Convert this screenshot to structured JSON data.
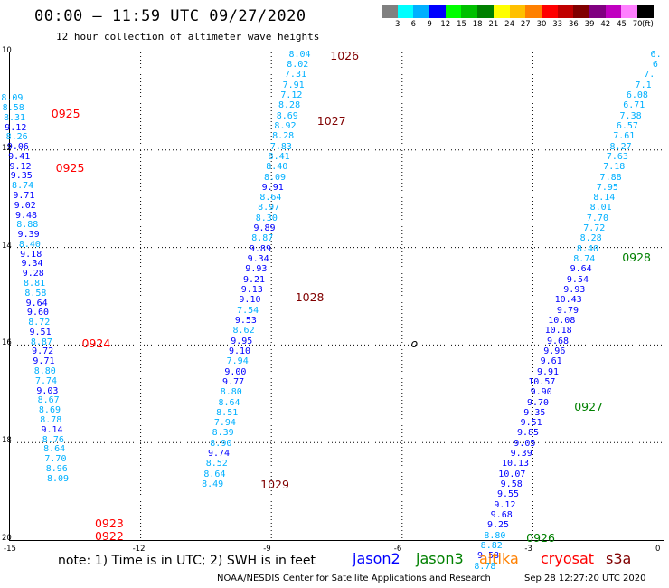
{
  "title": "00:00 – 11:59 UTC 09/27/2020",
  "subtitle": "12 hour collection of altimeter wave heights",
  "colorbar": {
    "colors": [
      "#808080",
      "#00ffff",
      "#00b0ff",
      "#0000ff",
      "#00ff00",
      "#00c000",
      "#008000",
      "#ffff00",
      "#ffc000",
      "#ff8000",
      "#ff0000",
      "#c00000",
      "#800000",
      "#800080",
      "#c000c0",
      "#ff80ff",
      "#000000"
    ],
    "labels": [
      "3",
      "6",
      "9",
      "12",
      "15",
      "18",
      "21",
      "24",
      "27",
      "30",
      "33",
      "36",
      "39",
      "42",
      "45",
      "70"
    ],
    "unit": "(ft)"
  },
  "axes": {
    "xlim": [
      -15,
      0
    ],
    "ylim": [
      10,
      20
    ],
    "xticks": [
      "-15",
      "-12",
      "-9",
      "-6",
      "-3",
      "0"
    ],
    "yticks": [
      "10",
      "12",
      "14",
      "16",
      "18",
      "20"
    ]
  },
  "tracks": [
    {
      "lon": -14.7,
      "lat_start": 10.95,
      "step": 0.2,
      "values": [
        {
          "v": "8.09",
          "c": "#00b0ff"
        },
        {
          "v": "8.58",
          "c": "#00b0ff"
        },
        {
          "v": "8.31",
          "c": "#00b0ff"
        },
        {
          "v": "9.12",
          "c": "#0000ff"
        },
        {
          "v": "8.26",
          "c": "#00b0ff"
        },
        {
          "v": "9.06",
          "c": "#0000ff"
        },
        {
          "v": "9.41",
          "c": "#0000ff"
        },
        {
          "v": "9.12",
          "c": "#0000ff"
        },
        {
          "v": "9.35",
          "c": "#0000ff"
        },
        {
          "v": "8.74",
          "c": "#00b0ff"
        },
        {
          "v": "9.71",
          "c": "#0000ff"
        },
        {
          "v": "9.02",
          "c": "#0000ff"
        },
        {
          "v": "9.48",
          "c": "#0000ff"
        },
        {
          "v": "8.88",
          "c": "#00b0ff"
        },
        {
          "v": "9.39",
          "c": "#0000ff"
        },
        {
          "v": "8.40",
          "c": "#00b0ff"
        },
        {
          "v": "9.18",
          "c": "#0000ff"
        },
        {
          "v": "9.34",
          "c": "#0000ff"
        },
        {
          "v": "9.28",
          "c": "#0000ff"
        },
        {
          "v": "8.81",
          "c": "#00b0ff"
        },
        {
          "v": "8.58",
          "c": "#00b0ff"
        },
        {
          "v": "9.64",
          "c": "#0000ff"
        },
        {
          "v": "9.60",
          "c": "#0000ff"
        },
        {
          "v": "8.72",
          "c": "#00b0ff"
        },
        {
          "v": "9.51",
          "c": "#0000ff"
        },
        {
          "v": "8.87",
          "c": "#00b0ff"
        },
        {
          "v": "9.72",
          "c": "#0000ff"
        },
        {
          "v": "9.71",
          "c": "#0000ff"
        },
        {
          "v": "8.80",
          "c": "#00b0ff"
        },
        {
          "v": "7.74",
          "c": "#00b0ff"
        },
        {
          "v": "9.03",
          "c": "#0000ff"
        },
        {
          "v": "8.67",
          "c": "#00b0ff"
        },
        {
          "v": "8.69",
          "c": "#00b0ff"
        },
        {
          "v": "8.78",
          "c": "#00b0ff"
        },
        {
          "v": "9.14",
          "c": "#0000ff"
        },
        {
          "v": "8.76",
          "c": "#00b0ff"
        },
        {
          "v": "8.64",
          "c": "#00b0ff"
        },
        {
          "v": "7.70",
          "c": "#00b0ff"
        },
        {
          "v": "8.96",
          "c": "#00b0ff"
        },
        {
          "v": "8.09",
          "c": "#00b0ff"
        }
      ],
      "lon_end": -13.65
    },
    {
      "lon": -8.1,
      "lat_start": 10.05,
      "step": 0.21,
      "values": [
        {
          "v": "8.04",
          "c": "#00b0ff"
        },
        {
          "v": "8.02",
          "c": "#00b0ff"
        },
        {
          "v": "7.31",
          "c": "#00b0ff"
        },
        {
          "v": "7.91",
          "c": "#00b0ff"
        },
        {
          "v": "7.12",
          "c": "#00b0ff"
        },
        {
          "v": "8.28",
          "c": "#00b0ff"
        },
        {
          "v": "8.69",
          "c": "#00b0ff"
        },
        {
          "v": "8.92",
          "c": "#00b0ff"
        },
        {
          "v": "8.28",
          "c": "#00b0ff"
        },
        {
          "v": "7.83",
          "c": "#00b0ff"
        },
        {
          "v": "8.41",
          "c": "#00b0ff"
        },
        {
          "v": "8.40",
          "c": "#00b0ff"
        },
        {
          "v": "8.09",
          "c": "#00b0ff"
        },
        {
          "v": "9.91",
          "c": "#0000ff"
        },
        {
          "v": "8.64",
          "c": "#00b0ff"
        },
        {
          "v": "8.97",
          "c": "#00b0ff"
        },
        {
          "v": "8.30",
          "c": "#00b0ff"
        },
        {
          "v": "9.89",
          "c": "#0000ff"
        },
        {
          "v": "8.87",
          "c": "#00b0ff"
        },
        {
          "v": "9.89",
          "c": "#0000ff"
        },
        {
          "v": "9.34",
          "c": "#0000ff"
        },
        {
          "v": "9.93",
          "c": "#0000ff"
        },
        {
          "v": "9.21",
          "c": "#0000ff"
        },
        {
          "v": "9.13",
          "c": "#0000ff"
        },
        {
          "v": "9.10",
          "c": "#0000ff"
        },
        {
          "v": "7.54",
          "c": "#00b0ff"
        },
        {
          "v": "9.53",
          "c": "#0000ff"
        },
        {
          "v": "8.62",
          "c": "#00b0ff"
        },
        {
          "v": "9.95",
          "c": "#0000ff"
        },
        {
          "v": "9.10",
          "c": "#0000ff"
        },
        {
          "v": "7.94",
          "c": "#00b0ff"
        },
        {
          "v": "9.00",
          "c": "#0000ff"
        },
        {
          "v": "9.77",
          "c": "#0000ff"
        },
        {
          "v": "8.80",
          "c": "#00b0ff"
        },
        {
          "v": "8.64",
          "c": "#00b0ff"
        },
        {
          "v": "8.51",
          "c": "#00b0ff"
        },
        {
          "v": "7.94",
          "c": "#00b0ff"
        },
        {
          "v": "8.39",
          "c": "#00b0ff"
        },
        {
          "v": "8.90",
          "c": "#00b0ff"
        },
        {
          "v": "9.74",
          "c": "#0000ff"
        },
        {
          "v": "8.52",
          "c": "#00b0ff"
        },
        {
          "v": "8.64",
          "c": "#00b0ff"
        },
        {
          "v": "8.49",
          "c": "#00b0ff"
        }
      ],
      "lon_end": -10.1
    },
    {
      "lon": -0.05,
      "lat_start": 10.05,
      "step": 0.21,
      "values": [
        {
          "v": "6.",
          "c": "#00b0ff"
        },
        {
          "v": "6",
          "c": "#00b0ff"
        },
        {
          "v": "7.",
          "c": "#00b0ff"
        },
        {
          "v": "7.1",
          "c": "#00b0ff"
        },
        {
          "v": "6.08",
          "c": "#00b0ff"
        },
        {
          "v": "6.71",
          "c": "#00b0ff"
        },
        {
          "v": "7.38",
          "c": "#00b0ff"
        },
        {
          "v": "6.57",
          "c": "#00b0ff"
        },
        {
          "v": "7.61",
          "c": "#00b0ff"
        },
        {
          "v": "8.27",
          "c": "#00b0ff"
        },
        {
          "v": "7.63",
          "c": "#00b0ff"
        },
        {
          "v": "7.18",
          "c": "#00b0ff"
        },
        {
          "v": "7.88",
          "c": "#00b0ff"
        },
        {
          "v": "7.95",
          "c": "#00b0ff"
        },
        {
          "v": "8.14",
          "c": "#00b0ff"
        },
        {
          "v": "8.01",
          "c": "#00b0ff"
        },
        {
          "v": "7.70",
          "c": "#00b0ff"
        },
        {
          "v": "7.72",
          "c": "#00b0ff"
        },
        {
          "v": "8.28",
          "c": "#00b0ff"
        },
        {
          "v": "8.40",
          "c": "#00b0ff"
        },
        {
          "v": "8.74",
          "c": "#00b0ff"
        },
        {
          "v": "9.64",
          "c": "#0000ff"
        },
        {
          "v": "9.54",
          "c": "#0000ff"
        },
        {
          "v": "9.93",
          "c": "#0000ff"
        },
        {
          "v": "10.43",
          "c": "#0000ff"
        },
        {
          "v": "9.79",
          "c": "#0000ff"
        },
        {
          "v": "10.08",
          "c": "#0000ff"
        },
        {
          "v": "10.18",
          "c": "#0000ff"
        },
        {
          "v": "9.68",
          "c": "#0000ff"
        },
        {
          "v": "9.96",
          "c": "#0000ff"
        },
        {
          "v": "9.61",
          "c": "#0000ff"
        },
        {
          "v": "9.91",
          "c": "#0000ff"
        },
        {
          "v": "10.57",
          "c": "#0000ff"
        },
        {
          "v": "9.90",
          "c": "#0000ff"
        },
        {
          "v": "9.70",
          "c": "#0000ff"
        },
        {
          "v": "9.35",
          "c": "#0000ff"
        },
        {
          "v": "9.51",
          "c": "#0000ff"
        },
        {
          "v": "9.85",
          "c": "#0000ff"
        },
        {
          "v": "9.05",
          "c": "#0000ff"
        },
        {
          "v": "9.39",
          "c": "#0000ff"
        },
        {
          "v": "10.13",
          "c": "#0000ff"
        },
        {
          "v": "10.07",
          "c": "#0000ff"
        },
        {
          "v": "9.58",
          "c": "#0000ff"
        },
        {
          "v": "9.55",
          "c": "#0000ff"
        },
        {
          "v": "9.12",
          "c": "#0000ff"
        },
        {
          "v": "9.68",
          "c": "#0000ff"
        },
        {
          "v": "9.25",
          "c": "#0000ff"
        },
        {
          "v": "8.80",
          "c": "#00b0ff"
        },
        {
          "v": "8.82",
          "c": "#00b0ff"
        },
        {
          "v": "9.58",
          "c": "#0000ff"
        },
        {
          "v": "8.78",
          "c": "#00b0ff"
        }
      ],
      "lon_end": -3.85
    }
  ],
  "timestamps": [
    {
      "t": "1026",
      "c": "#800000",
      "lon": -7.65,
      "lat": 10.05
    },
    {
      "t": "1027",
      "c": "#800000",
      "lon": -7.95,
      "lat": 11.4
    },
    {
      "t": "1028",
      "c": "#800000",
      "lon": -8.45,
      "lat": 15.0
    },
    {
      "t": "1029",
      "c": "#800000",
      "lon": -9.25,
      "lat": 18.85
    },
    {
      "t": "0925",
      "c": "#ff0000",
      "lon": -14.05,
      "lat": 11.25
    },
    {
      "t": "0925",
      "c": "#ff0000",
      "lon": -13.95,
      "lat": 12.35
    },
    {
      "t": "0924",
      "c": "#ff0000",
      "lon": -13.35,
      "lat": 15.95
    },
    {
      "t": "0923",
      "c": "#ff0000",
      "lon": -13.05,
      "lat": 19.65
    },
    {
      "t": "0922",
      "c": "#ff0000",
      "lon": -13.05,
      "lat": 19.9
    },
    {
      "t": "0928",
      "c": "#008000",
      "lon": -0.95,
      "lat": 14.2
    },
    {
      "t": "0927",
      "c": "#008000",
      "lon": -2.05,
      "lat": 17.25
    },
    {
      "t": "0926",
      "c": "#008000",
      "lon": -3.15,
      "lat": 19.95
    }
  ],
  "marker": {
    "text": "o",
    "lon": -5.8,
    "lat": 15.95
  },
  "note": "note:  1) Time is in UTC;  2) SWH is in feet",
  "satellites": [
    {
      "name": "jason2",
      "color": "#0000ff"
    },
    {
      "name": "jason3",
      "color": "#008000"
    },
    {
      "name": "altika",
      "color": "#ff8000"
    },
    {
      "name": "cryosat",
      "color": "#ff0000"
    },
    {
      "name": "s3a",
      "color": "#800000"
    }
  ],
  "footer": {
    "credit": "NOAA/NESDIS Center for Satellite Applications and Research",
    "generated": "Sep 28 12:27:20 UTC 2020"
  }
}
